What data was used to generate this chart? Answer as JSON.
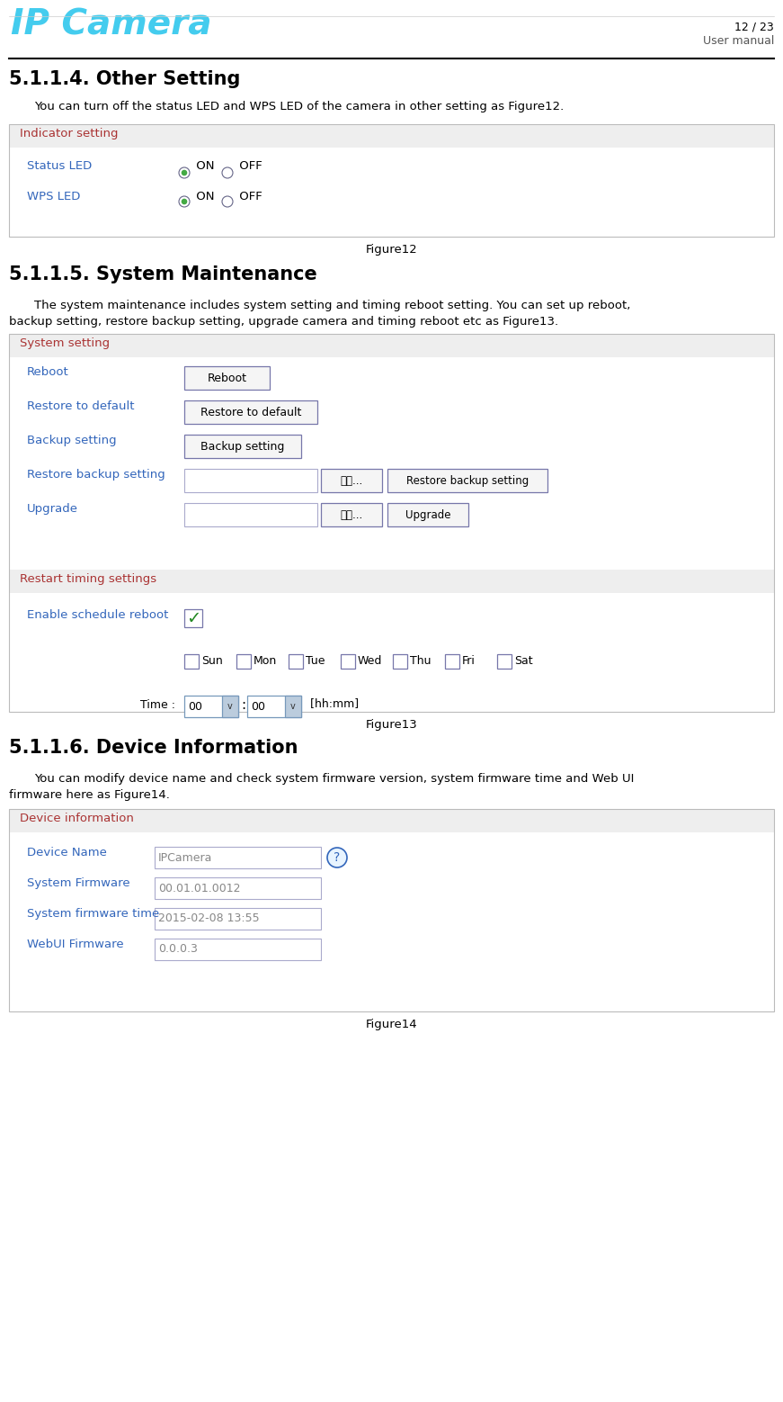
{
  "page_width": 8.71,
  "page_height": 15.58,
  "dpi": 100,
  "bg_color": "#ffffff",
  "logo_text": "IP Camera",
  "logo_color": "#44ccee",
  "header_right": "User manual",
  "footer_text": "12 / 23",
  "section1_title": "5.1.1.4. Other Setting",
  "section1_body": "You can turn off the status LED and WPS LED of the camera in other setting as Figure12.",
  "fig12_label": "Figure12",
  "indicator_header": "Indicator setting",
  "indicator_header_color": "#aa3333",
  "indicator_bg": "#eeeeee",
  "status_led_label": "Status LED",
  "wps_led_label": "WPS LED",
  "led_color": "#3366bb",
  "section2_title": "5.1.1.5. System Maintenance",
  "section2_body1": "The system maintenance includes system setting and timing reboot setting. You can set up reboot,",
  "section2_body2": "backup setting, restore backup setting, upgrade camera and timing reboot etc as Figure13.",
  "fig13_label": "Figure13",
  "system_setting_header": "System setting",
  "system_header_color": "#aa3333",
  "system_setting_bg": "#eeeeee",
  "sys_rows": [
    "Reboot",
    "Restore to default",
    "Backup setting",
    "Restore backup setting",
    "Upgrade"
  ],
  "sys_row_color": "#3366bb",
  "restart_header": "Restart timing settings",
  "restart_header_color": "#aa3333",
  "restart_bg": "#eeeeee",
  "enable_schedule_label": "Enable schedule reboot",
  "enable_schedule_color": "#3366bb",
  "days": [
    "Sun",
    "Mon",
    "Tue",
    "Wed",
    "Thu",
    "Fri",
    "Sat"
  ],
  "section3_title": "5.1.1.6. Device Information",
  "section3_body1": "You can modify device name and check system firmware version, system firmware time and Web UI",
  "section3_body2": "firmware here as Figure14.",
  "fig14_label": "Figure14",
  "device_info_header": "Device information",
  "device_info_header_color": "#aa3333",
  "device_info_bg": "#eeeeee",
  "device_rows": [
    {
      "label": "Device Name",
      "value": "IPCamera",
      "color": "#3366bb"
    },
    {
      "label": "System Firmware",
      "value": "00.01.01.0012",
      "color": "#3366bb"
    },
    {
      "label": "System firmware time",
      "value": "2015-02-08 13:55",
      "color": "#3366bb"
    },
    {
      "label": "WebUI Firmware",
      "value": "0.0.0.3",
      "color": "#3366bb"
    }
  ]
}
